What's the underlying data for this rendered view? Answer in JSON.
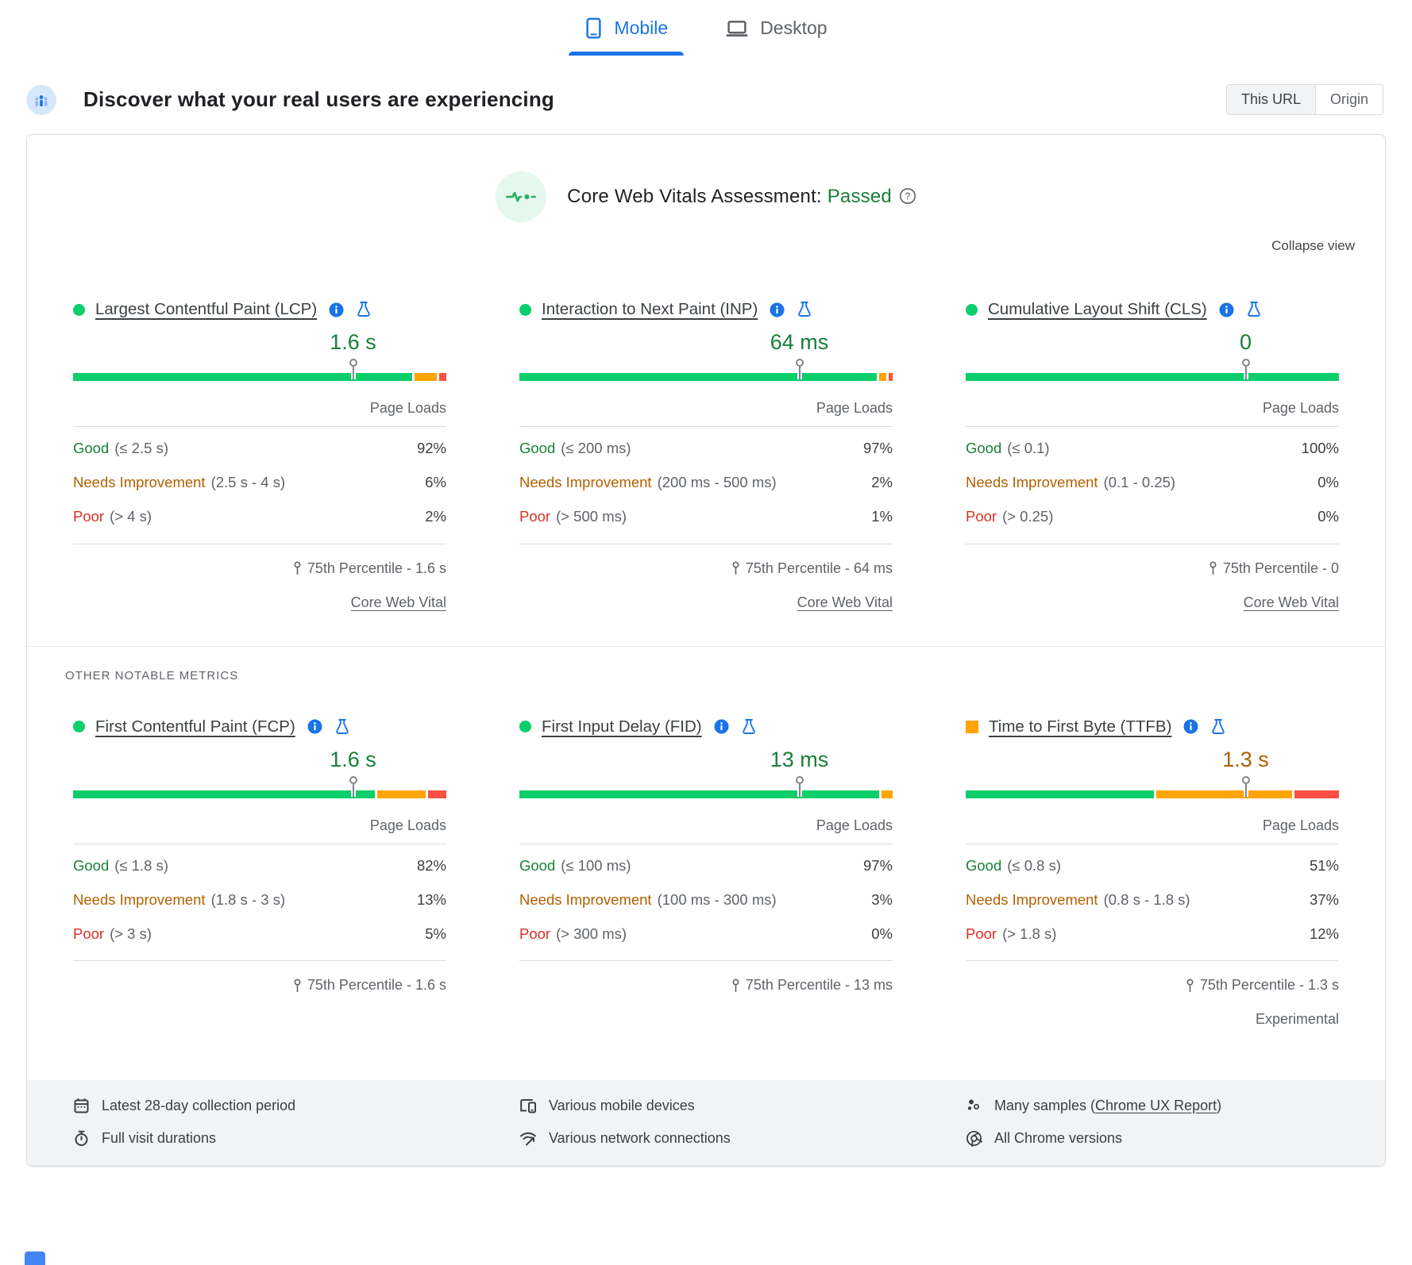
{
  "tabs": {
    "mobile": "Mobile",
    "desktop": "Desktop"
  },
  "header": {
    "title": "Discover what your real users are experiencing",
    "scope_this_url": "This URL",
    "scope_origin": "Origin"
  },
  "assessment": {
    "label": "Core Web Vitals Assessment:",
    "result": "Passed",
    "collapse_label": "Collapse view"
  },
  "section_label": "OTHER NOTABLE METRICS",
  "labels": {
    "page_loads": "Page Loads"
  },
  "metrics": [
    {
      "section": "core",
      "bullet": "dot",
      "title": "Largest Contentful Paint (LCP)",
      "value": "1.6 s",
      "value_class": "good",
      "bar": {
        "good": 92,
        "ni": 6,
        "poor": 2
      },
      "rows": [
        {
          "cls": "good",
          "label": "Good",
          "range": "(≤ 2.5 s)",
          "pct": "92%"
        },
        {
          "cls": "ni",
          "label": "Needs Improvement",
          "range": "(2.5 s - 4 s)",
          "pct": "6%"
        },
        {
          "cls": "poor",
          "label": "Poor",
          "range": "(> 4 s)",
          "pct": "2%"
        }
      ],
      "percentile": "75th Percentile - 1.6 s",
      "link": "Core Web Vital"
    },
    {
      "section": "core",
      "bullet": "dot",
      "title": "Interaction to Next Paint (INP)",
      "value": "64 ms",
      "value_class": "good",
      "bar": {
        "good": 97,
        "ni": 2,
        "poor": 1
      },
      "rows": [
        {
          "cls": "good",
          "label": "Good",
          "range": "(≤ 200 ms)",
          "pct": "97%"
        },
        {
          "cls": "ni",
          "label": "Needs Improvement",
          "range": "(200 ms - 500 ms)",
          "pct": "2%"
        },
        {
          "cls": "poor",
          "label": "Poor",
          "range": "(> 500 ms)",
          "pct": "1%"
        }
      ],
      "percentile": "75th Percentile - 64 ms",
      "link": "Core Web Vital"
    },
    {
      "section": "core",
      "bullet": "dot",
      "title": "Cumulative Layout Shift (CLS)",
      "value": "0",
      "value_class": "good",
      "bar": {
        "good": 100,
        "ni": 0,
        "poor": 0
      },
      "rows": [
        {
          "cls": "good",
          "label": "Good",
          "range": "(≤ 0.1)",
          "pct": "100%"
        },
        {
          "cls": "ni",
          "label": "Needs Improvement",
          "range": "(0.1 - 0.25)",
          "pct": "0%"
        },
        {
          "cls": "poor",
          "label": "Poor",
          "range": "(> 0.25)",
          "pct": "0%"
        }
      ],
      "percentile": "75th Percentile - 0",
      "link": "Core Web Vital"
    },
    {
      "section": "other",
      "bullet": "dot",
      "title": "First Contentful Paint (FCP)",
      "value": "1.6 s",
      "value_class": "good",
      "bar": {
        "good": 82,
        "ni": 13,
        "poor": 5
      },
      "rows": [
        {
          "cls": "good",
          "label": "Good",
          "range": "(≤ 1.8 s)",
          "pct": "82%"
        },
        {
          "cls": "ni",
          "label": "Needs Improvement",
          "range": "(1.8 s - 3 s)",
          "pct": "13%"
        },
        {
          "cls": "poor",
          "label": "Poor",
          "range": "(> 3 s)",
          "pct": "5%"
        }
      ],
      "percentile": "75th Percentile - 1.6 s"
    },
    {
      "section": "other",
      "bullet": "dot",
      "title": "First Input Delay (FID)",
      "info": true,
      "value": "13 ms",
      "value_class": "good",
      "bar": {
        "good": 97,
        "ni": 3,
        "poor": 0
      },
      "rows": [
        {
          "cls": "good",
          "label": "Good",
          "range": "(≤ 100 ms)",
          "pct": "97%"
        },
        {
          "cls": "ni",
          "label": "Needs Improvement",
          "range": "(100 ms - 300 ms)",
          "pct": "3%"
        },
        {
          "cls": "poor",
          "label": "Poor",
          "range": "(> 300 ms)",
          "pct": "0%"
        }
      ],
      "percentile": "75th Percentile - 13 ms"
    },
    {
      "section": "other",
      "bullet": "square",
      "title": "Time to First Byte (TTFB)",
      "flask": true,
      "value": "1.3 s",
      "value_class": "ni",
      "bar": {
        "good": 51,
        "ni": 37,
        "poor": 12
      },
      "rows": [
        {
          "cls": "good",
          "label": "Good",
          "range": "(≤ 0.8 s)",
          "pct": "51%"
        },
        {
          "cls": "ni",
          "label": "Needs Improvement",
          "range": "(0.8 s - 1.8 s)",
          "pct": "37%"
        },
        {
          "cls": "poor",
          "label": "Poor",
          "range": "(> 1.8 s)",
          "pct": "12%"
        }
      ],
      "percentile": "75th Percentile - 1.3 s",
      "experimental": "Experimental"
    }
  ],
  "footer": {
    "cells": [
      {
        "icon": "calendar",
        "text": "Latest 28-day collection period"
      },
      {
        "icon": "stopwatch",
        "text": "Full visit durations"
      },
      {
        "icon": "devices",
        "text": "Various mobile devices"
      },
      {
        "icon": "network",
        "text": "Various network connections"
      },
      {
        "icon": "samples",
        "pre": "Many samples (",
        "link": "Chrome UX Report",
        "post": ")"
      },
      {
        "icon": "chrome",
        "text": "All Chrome versions"
      }
    ]
  },
  "colors": {
    "accent_blue": "#1a73e8",
    "bar_good": "#0cce6b",
    "bar_needs_improvement": "#ffa400",
    "bar_poor": "#ff4e42",
    "text_good": "#188038",
    "text_needs_improvement": "#b06000",
    "text_poor": "#d93025"
  }
}
